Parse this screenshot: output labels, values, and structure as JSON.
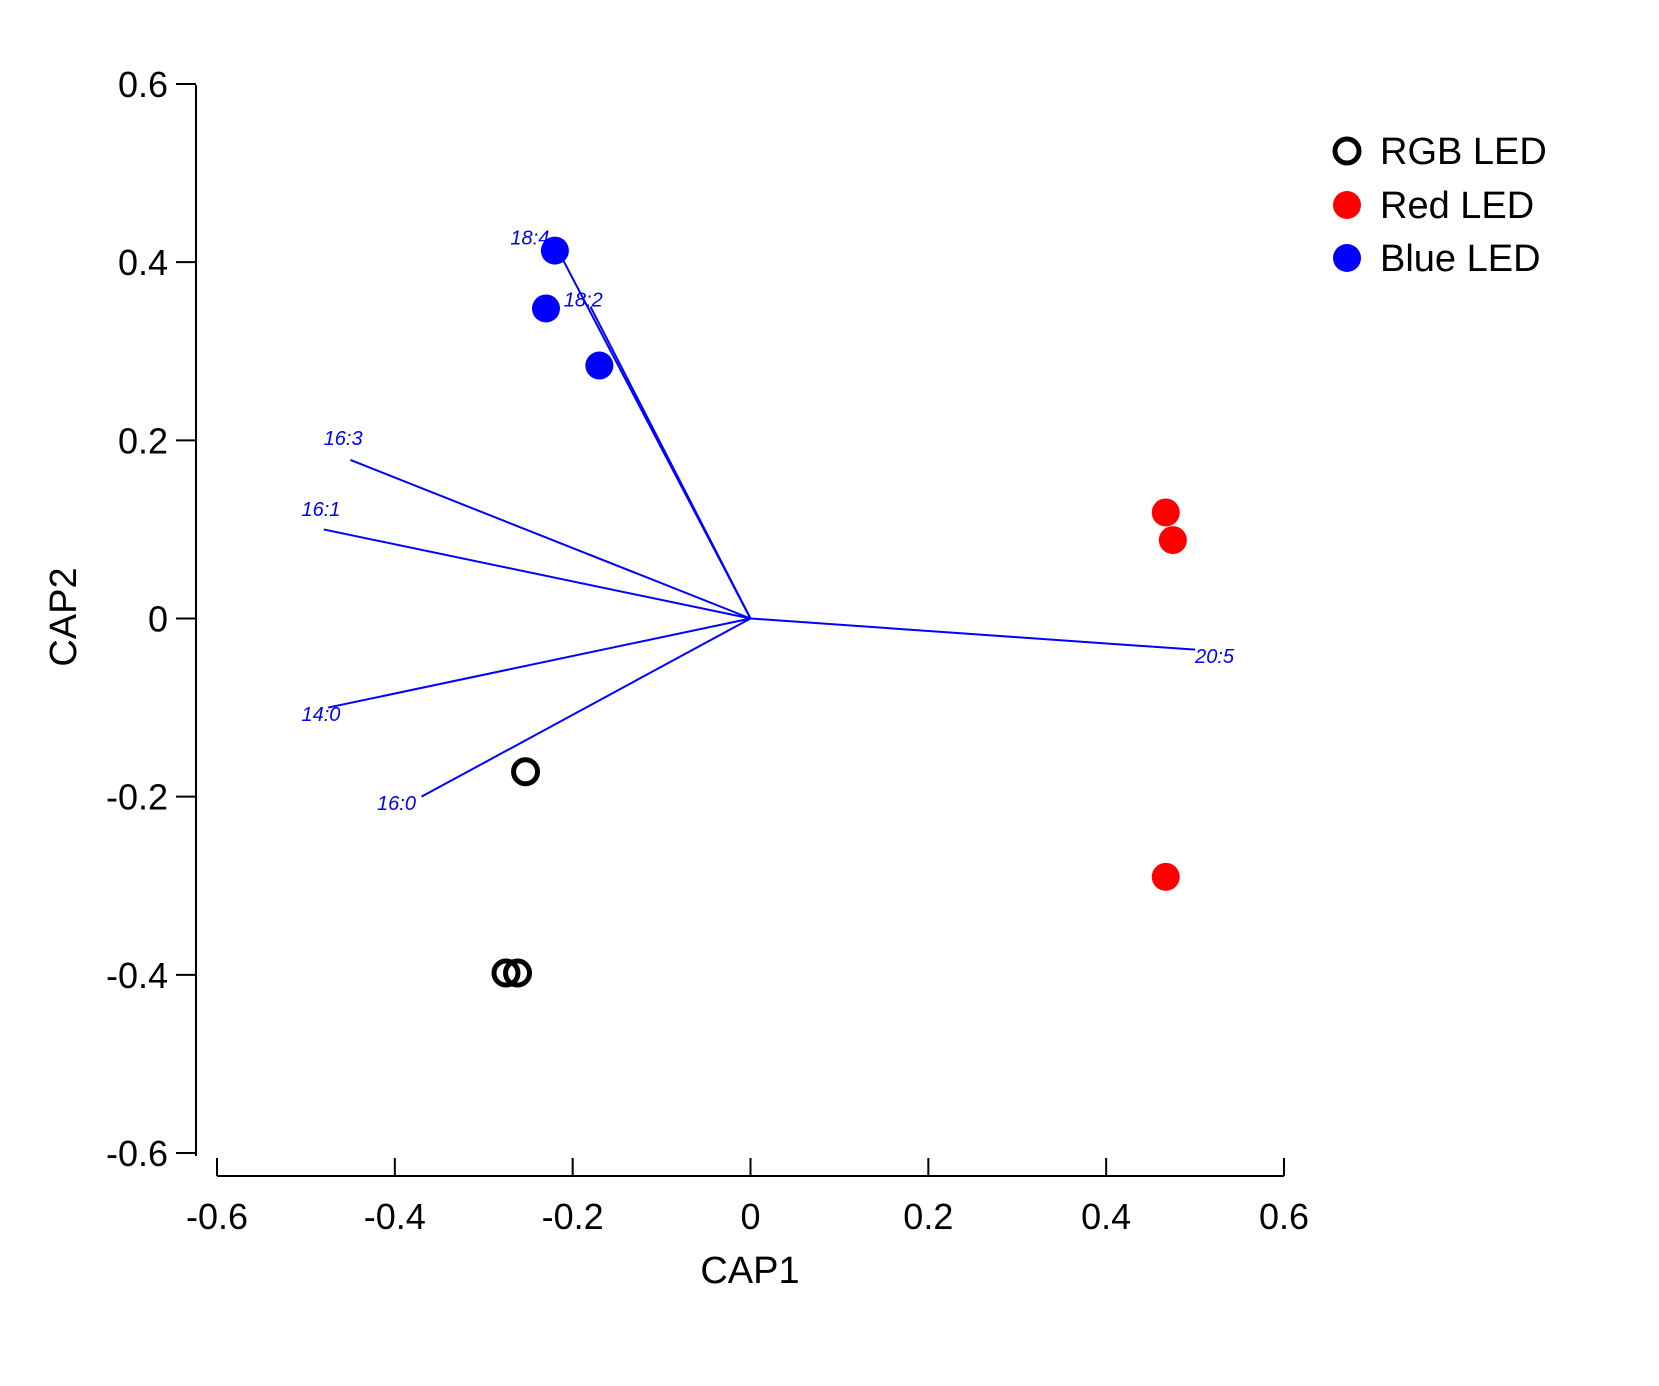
{
  "chart_data": {
    "type": "scatter",
    "title": "",
    "xlabel": "CAP1",
    "ylabel": "CAP2",
    "xlim": [
      -0.6,
      0.6
    ],
    "ylim": [
      -0.6,
      0.6
    ],
    "xticks": [
      -0.6,
      -0.4,
      -0.2,
      0,
      0.2,
      0.4,
      0.6
    ],
    "yticks": [
      -0.6,
      -0.4,
      -0.2,
      0,
      0.2,
      0.4,
      0.6
    ],
    "xtick_labels": [
      "-0.6",
      "-0.4",
      "-0.2",
      "0",
      "0.2",
      "0.4",
      "0.6"
    ],
    "ytick_labels": [
      "-0.6",
      "-0.4",
      "-0.2",
      "0",
      "0.2",
      "0.4",
      "0.6"
    ],
    "grid": false,
    "legend_position": "top-right",
    "series": [
      {
        "name": "RGB LED",
        "marker": "open-circle",
        "color": "#000000",
        "points": [
          {
            "x": -0.253,
            "y": -0.172
          },
          {
            "x": -0.275,
            "y": -0.398
          },
          {
            "x": -0.262,
            "y": -0.398
          }
        ]
      },
      {
        "name": "Red LED",
        "marker": "filled-circle",
        "color": "#ff0000",
        "points": [
          {
            "x": 0.467,
            "y": 0.119
          },
          {
            "x": 0.475,
            "y": 0.088
          },
          {
            "x": 0.467,
            "y": -0.29
          }
        ]
      },
      {
        "name": "Blue LED",
        "marker": "filled-circle",
        "color": "#0000ff",
        "points": [
          {
            "x": -0.22,
            "y": 0.413
          },
          {
            "x": -0.23,
            "y": 0.348
          },
          {
            "x": -0.17,
            "y": 0.284
          }
        ]
      }
    ],
    "vectors": {
      "color": "#0000ff",
      "items": [
        {
          "label": "18:4",
          "x": -0.22,
          "y": 0.42,
          "label_x": -0.27,
          "label_y": 0.42
        },
        {
          "label": "18:2",
          "x": -0.18,
          "y": 0.35,
          "label_x": -0.21,
          "label_y": 0.35
        },
        {
          "label": "16:3",
          "x": -0.45,
          "y": 0.178,
          "label_x": -0.48,
          "label_y": 0.195
        },
        {
          "label": "16:1",
          "x": -0.48,
          "y": 0.1,
          "label_x": -0.505,
          "label_y": 0.115
        },
        {
          "label": "14:0",
          "x": -0.475,
          "y": -0.1,
          "label_x": -0.505,
          "label_y": -0.115
        },
        {
          "label": "16:0",
          "x": -0.37,
          "y": -0.2,
          "label_x": -0.42,
          "label_y": -0.215
        },
        {
          "label": "20:5",
          "x": 0.5,
          "y": -0.035,
          "label_x": 0.5,
          "label_y": -0.05
        }
      ]
    }
  }
}
